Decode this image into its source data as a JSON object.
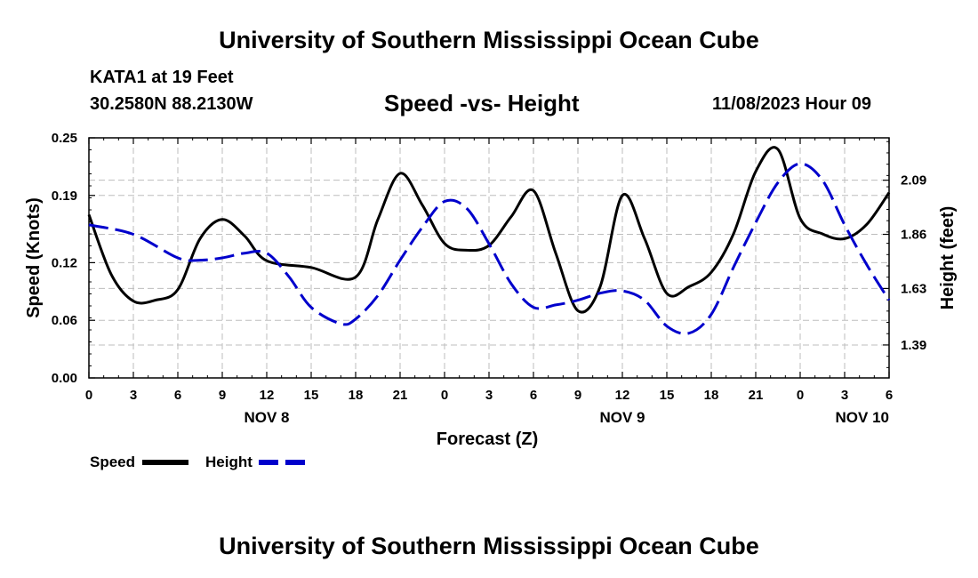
{
  "header": {
    "title": "University of Southern Mississippi Ocean Cube",
    "station": "KATA1 at 19 Feet",
    "coords": "30.2580N  88.2130W",
    "subtitle": "Speed -vs- Height",
    "date": "11/08/2023 Hour 09"
  },
  "footer": {
    "title": "University of Southern Mississippi Ocean Cube"
  },
  "chart_data": {
    "type": "line",
    "title": "Speed -vs- Height",
    "xlabel": "Forecast (Z)",
    "ylabel": "Speed (Knots)",
    "y2label": "Height (feet)",
    "x_range": [
      0,
      54
    ],
    "x_ticks": [
      0,
      3,
      6,
      9,
      12,
      15,
      18,
      21,
      24,
      27,
      30,
      33,
      36,
      39,
      42,
      45,
      48,
      51,
      54
    ],
    "x_tick_labels": [
      "0",
      "3",
      "6",
      "9",
      "12",
      "15",
      "18",
      "21",
      "0",
      "3",
      "6",
      "9",
      "12",
      "15",
      "18",
      "21",
      "0",
      "3",
      "6"
    ],
    "day_labels": [
      {
        "x": 12,
        "label": "NOV 8"
      },
      {
        "x": 36,
        "label": "NOV 9"
      },
      {
        "x": 60,
        "label": "NOV 10"
      }
    ],
    "ylim": [
      0,
      0.25
    ],
    "y_ticks": [
      0,
      0.06,
      0.12,
      0.19,
      0.25
    ],
    "y_tick_labels": [
      "0.00",
      "0.06",
      "0.12",
      "0.19",
      "0.25"
    ],
    "y2lim": [
      1.25,
      2.27
    ],
    "y2_ticks": [
      1.39,
      1.63,
      1.86,
      2.09
    ],
    "y2_tick_labels": [
      "1.39",
      "1.63",
      "1.86",
      "2.09"
    ],
    "grid": true,
    "legend": "bottom-left",
    "series": [
      {
        "name": "Speed",
        "axis": "left",
        "color": "#000000",
        "style": "solid",
        "x": [
          0,
          1.5,
          3,
          4.5,
          6,
          7.5,
          9,
          10.5,
          12,
          15,
          18,
          19.5,
          21,
          22.5,
          24,
          25.5,
          27,
          28.5,
          30,
          31.5,
          33,
          34.5,
          36,
          37.5,
          39,
          40.5,
          42,
          43.5,
          45,
          46.5,
          48,
          49.5,
          51,
          52.5,
          54
        ],
        "values": [
          0.17,
          0.108,
          0.08,
          0.081,
          0.092,
          0.145,
          0.165,
          0.148,
          0.122,
          0.115,
          0.105,
          0.165,
          0.213,
          0.18,
          0.14,
          0.133,
          0.138,
          0.168,
          0.195,
          0.13,
          0.07,
          0.095,
          0.19,
          0.145,
          0.088,
          0.095,
          0.11,
          0.15,
          0.215,
          0.238,
          0.166,
          0.15,
          0.145,
          0.16,
          0.193
        ]
      },
      {
        "name": "Height",
        "axis": "right",
        "color": "#0000cc",
        "style": "dashed",
        "x": [
          0,
          3,
          6,
          7.5,
          9,
          10.5,
          12,
          13.5,
          15,
          17,
          18,
          19.5,
          21,
          22.5,
          24,
          25.5,
          27,
          28.5,
          30,
          31.5,
          33,
          34.5,
          36,
          37.5,
          39,
          40.5,
          42,
          43.5,
          45,
          46.5,
          48,
          49.5,
          51,
          52.5,
          54
        ],
        "values": [
          1.9,
          1.86,
          1.76,
          1.75,
          1.76,
          1.78,
          1.78,
          1.68,
          1.55,
          1.48,
          1.5,
          1.6,
          1.75,
          1.89,
          2.0,
          1.97,
          1.82,
          1.65,
          1.55,
          1.56,
          1.58,
          1.61,
          1.62,
          1.58,
          1.47,
          1.44,
          1.52,
          1.72,
          1.91,
          2.08,
          2.16,
          2.09,
          1.9,
          1.73,
          1.58
        ]
      }
    ]
  }
}
